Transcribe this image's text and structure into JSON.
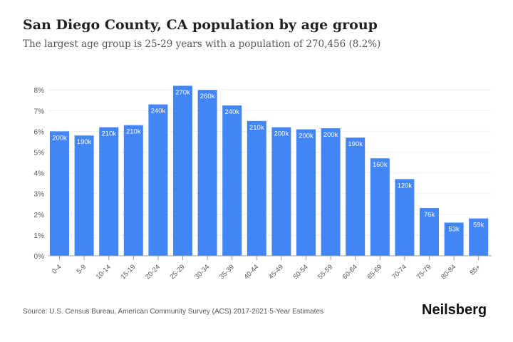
{
  "chart_data": {
    "type": "bar",
    "title": "San Diego County, CA population by age group",
    "subtitle": "The largest age group is 25-29 years with a population of 270,456 (8.2%)",
    "categories": [
      "0-4",
      "5-9",
      "10-14",
      "15-19",
      "20-24",
      "25-29",
      "30-34",
      "35-39",
      "40-44",
      "45-49",
      "50-54",
      "55-59",
      "60-64",
      "65-69",
      "70-74",
      "75-79",
      "80-84",
      "85+"
    ],
    "values": [
      6.0,
      5.8,
      6.2,
      6.3,
      7.3,
      8.2,
      8.0,
      7.25,
      6.5,
      6.2,
      6.1,
      6.15,
      5.7,
      4.7,
      3.7,
      2.3,
      1.6,
      1.8
    ],
    "data_labels": [
      "200k",
      "190k",
      "210k",
      "210k",
      "240k",
      "270k",
      "260k",
      "240k",
      "210k",
      "200k",
      "200k",
      "200k",
      "190k",
      "160k",
      "120k",
      "76k",
      "53k",
      "59k"
    ],
    "yticks": [
      "0%",
      "1%",
      "2%",
      "3%",
      "4%",
      "5%",
      "6%",
      "7%",
      "8%"
    ],
    "ylim": [
      0,
      8.2
    ],
    "xlabel": "",
    "ylabel": "",
    "grid": true,
    "bar_color": "#4285f4"
  },
  "footer": {
    "source": "Source: U.S. Census Bureau, American Community Survey (ACS) 2017-2021 5-Year Estimates",
    "logo": "Neilsberg"
  }
}
